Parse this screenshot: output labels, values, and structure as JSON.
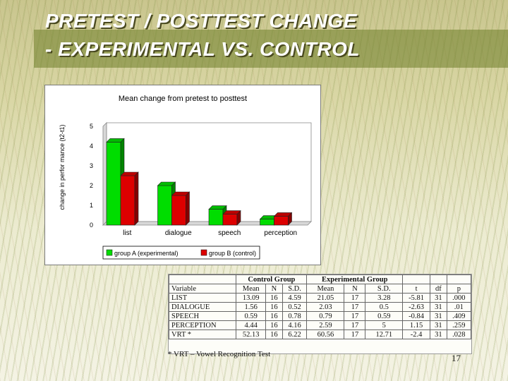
{
  "slide": {
    "title_line1": "PRETEST / POSTTEST CHANGE",
    "title_line2": "- EXPERIMENTAL VS. CONTROL",
    "page_number": "17",
    "footnote": "* VRT – Vowel Recognition Test"
  },
  "chart_data": {
    "type": "bar",
    "title": "Mean change from pretest to posttest",
    "xlabel": "",
    "ylabel": "change in perfor mance (t2-t1)",
    "categories": [
      "list",
      "dialogue",
      "speech",
      "perception"
    ],
    "series": [
      {
        "name": "group A (experimental)",
        "color": "#00dd00",
        "values": [
          4.2,
          2.0,
          0.8,
          0.3
        ]
      },
      {
        "name": "group B (control)",
        "color": "#dd0000",
        "values": [
          2.5,
          1.5,
          0.55,
          0.45
        ]
      }
    ],
    "ylim": [
      0,
      5
    ],
    "yticks": [
      "0",
      "1",
      "2",
      "3",
      "4",
      "5"
    ],
    "grid": false,
    "legend": "bottom",
    "style": "3d"
  },
  "table": {
    "group_headers": [
      "Control Group",
      "Experimental Group"
    ],
    "columns": [
      "Variable",
      "Mean",
      "N",
      "S.D.",
      "Mean",
      "N",
      "S.D.",
      "t",
      "df",
      "p"
    ],
    "rows": [
      [
        "LIST",
        "13.09",
        "16",
        "4.59",
        "21.05",
        "17",
        "3.28",
        "-5.81",
        "31",
        ".000"
      ],
      [
        "DIALOGUE",
        "1.56",
        "16",
        "0.52",
        "2.03",
        "17",
        "0.5",
        "-2.63",
        "31",
        ".01"
      ],
      [
        "SPEECH",
        "0.59",
        "16",
        "0.78",
        "0.79",
        "17",
        "0.59",
        "-0.84",
        "31",
        ".409"
      ],
      [
        "PERCEPTION",
        "4.44",
        "16",
        "4.16",
        "2.59",
        "17",
        "5",
        "1.15",
        "31",
        ".259"
      ],
      [
        "VRT *",
        "52.13",
        "16",
        "6.22",
        "60.56",
        "17",
        "12.71",
        "-2.4",
        "31",
        ".028"
      ]
    ]
  }
}
